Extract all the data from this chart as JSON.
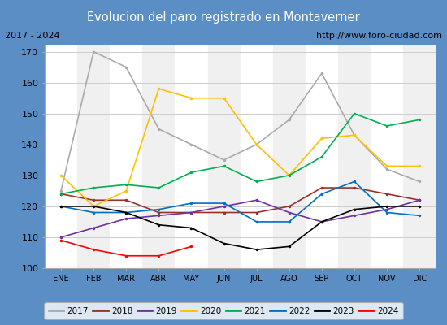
{
  "title": "Evolucion del paro registrado en Montaverner",
  "title_color": "#ffffff",
  "title_bg_color": "#5b8ec4",
  "subtitle_left": "2017 - 2024",
  "subtitle_right": "http://www.foro-ciudad.com",
  "xlabel_months": [
    "ENE",
    "FEB",
    "MAR",
    "ABR",
    "MAY",
    "JUN",
    "JUL",
    "AGO",
    "SEP",
    "OCT",
    "NOV",
    "DIC"
  ],
  "ylim": [
    100,
    172
  ],
  "yticks": [
    100,
    110,
    120,
    130,
    140,
    150,
    160,
    170
  ],
  "series": {
    "2017": {
      "color": "#aaaaaa",
      "values": [
        125,
        170,
        165,
        145,
        140,
        135,
        140,
        148,
        163,
        143,
        132,
        128
      ]
    },
    "2018": {
      "color": "#963228",
      "values": [
        124,
        122,
        122,
        118,
        118,
        118,
        118,
        120,
        126,
        126,
        124,
        122
      ]
    },
    "2019": {
      "color": "#7030a0",
      "values": [
        110,
        113,
        116,
        117,
        118,
        120,
        122,
        118,
        115,
        117,
        119,
        122
      ]
    },
    "2020": {
      "color": "#ffc000",
      "values": [
        130,
        120,
        125,
        158,
        155,
        155,
        140,
        130,
        142,
        143,
        133,
        133
      ]
    },
    "2021": {
      "color": "#00b050",
      "values": [
        124,
        126,
        127,
        126,
        131,
        133,
        128,
        130,
        136,
        150,
        146,
        148
      ]
    },
    "2022": {
      "color": "#0070c0",
      "values": [
        120,
        118,
        118,
        119,
        121,
        121,
        115,
        115,
        124,
        128,
        118,
        117
      ]
    },
    "2023": {
      "color": "#000000",
      "values": [
        120,
        120,
        118,
        114,
        113,
        108,
        106,
        107,
        115,
        119,
        120,
        120
      ]
    },
    "2024": {
      "color": "#ff0000",
      "values": [
        109,
        106,
        104,
        104,
        107,
        null,
        null,
        null,
        null,
        null,
        null,
        null
      ]
    }
  },
  "grid_color": "#cccccc",
  "plot_bg": "#f0f0f0",
  "plot_bg_alt": "#ffffff",
  "border_color": "#5b8ec4",
  "fig_width": 5.5,
  "fig_height": 4.0,
  "dpi": 100
}
